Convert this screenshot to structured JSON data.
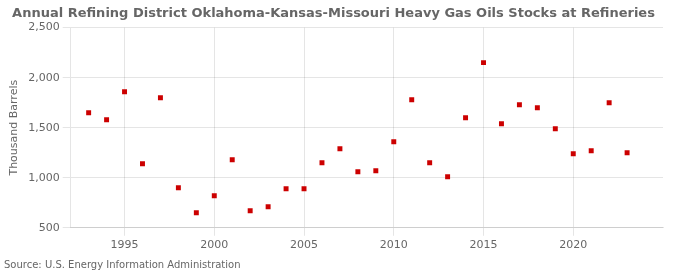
{
  "chart_data": {
    "type": "scatter",
    "title": "Annual Refining District Oklahoma-Kansas-Missouri Heavy Gas Oils Stocks at Refineries",
    "ylabel": "Thousand Barrels",
    "annotations": [
      "Source: U.S. Energy Information Administration"
    ],
    "x": [
      1993,
      1994,
      1995,
      1996,
      1997,
      1998,
      1999,
      2000,
      2001,
      2002,
      2003,
      2004,
      2005,
      2006,
      2007,
      2008,
      2009,
      2010,
      2011,
      2012,
      2013,
      2014,
      2015,
      2016,
      2017,
      2018,
      2019,
      2020,
      2021,
      2022,
      2023
    ],
    "values": [
      1650,
      1580,
      1860,
      1140,
      1800,
      900,
      650,
      820,
      1180,
      670,
      710,
      890,
      890,
      1150,
      1290,
      1060,
      1070,
      1360,
      1780,
      1150,
      1010,
      1600,
      2150,
      1540,
      1730,
      1700,
      1490,
      1240,
      1270,
      1750,
      1250
    ],
    "color": "#cc0000",
    "marker": "square",
    "xlim": [
      1992,
      2025
    ],
    "xticks": [
      1995,
      2000,
      2005,
      2010,
      2015,
      2020
    ],
    "ylim": [
      500,
      2500
    ],
    "yticks": [
      500,
      {
        "value": 1000,
        "label": "1,000"
      },
      {
        "value": 1500,
        "label": "1,500"
      },
      {
        "value": 2000,
        "label": "2,000"
      },
      {
        "value": 2500,
        "label": "2,500"
      }
    ],
    "grid": true
  }
}
